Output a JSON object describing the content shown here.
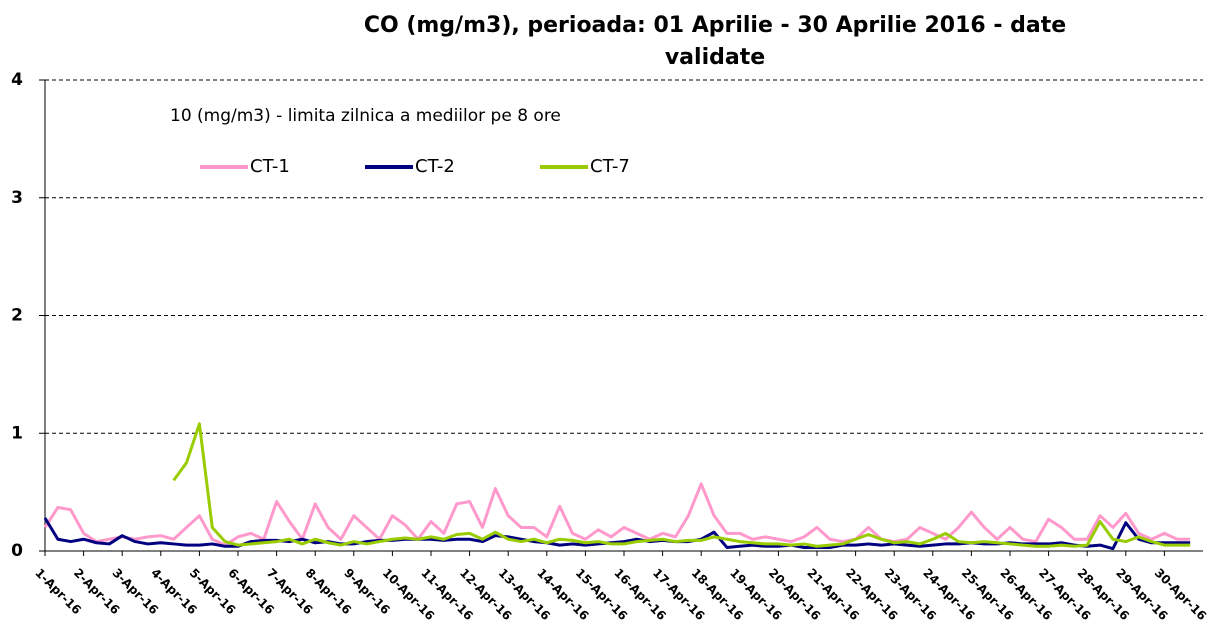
{
  "chart_data": {
    "type": "line",
    "title": [
      "CO (mg/m3), perioada:  01 Aprilie  - 30 Aprilie  2016 - date",
      "validate"
    ],
    "annotation": "10 (mg/m3) - limita zilnica a mediilor pe 8 ore",
    "categories": [
      "1-Apr-16",
      null,
      null,
      "2-Apr-16",
      null,
      null,
      "3-Apr-16",
      null,
      null,
      "4-Apr-16",
      null,
      null,
      "5-Apr-16",
      null,
      null,
      "6-Apr-16",
      null,
      null,
      "7-Apr-16",
      null,
      null,
      "8-Apr-16",
      null,
      null,
      "9-Apr-16",
      null,
      null,
      "10-Apr-16",
      null,
      null,
      "11-Apr-16",
      null,
      null,
      "12-Apr-16",
      null,
      null,
      "13-Apr-16",
      null,
      null,
      "14-Apr-16",
      null,
      null,
      "15-Apr-16",
      null,
      null,
      "16-Apr-16",
      null,
      null,
      "17-Apr-16",
      null,
      null,
      "18-Apr-16",
      null,
      null,
      "19-Apr-16",
      null,
      null,
      "20-Apr-16",
      null,
      null,
      "21-Apr-16",
      null,
      null,
      "22-Apr-16",
      null,
      null,
      "23-Apr-16",
      null,
      null,
      "24-Apr-16",
      null,
      null,
      "25-Apr-16",
      null,
      null,
      "26-Apr-16",
      null,
      null,
      "27-Apr-16",
      null,
      null,
      "28-Apr-16",
      null,
      null,
      "29-Apr-16",
      null,
      null,
      "30-Apr-16",
      null,
      null
    ],
    "series": [
      {
        "name": "CT-1",
        "color": "#ff99cc",
        "values": [
          0.2,
          0.37,
          0.35,
          0.15,
          0.08,
          0.1,
          0.12,
          0.1,
          0.12,
          0.13,
          0.1,
          0.2,
          0.3,
          0.1,
          0.05,
          0.12,
          0.15,
          0.1,
          0.42,
          0.25,
          0.1,
          0.4,
          0.2,
          0.1,
          0.3,
          0.2,
          0.1,
          0.3,
          0.22,
          0.1,
          0.25,
          0.15,
          0.4,
          0.42,
          0.2,
          0.53,
          0.3,
          0.2,
          0.2,
          0.12,
          0.38,
          0.15,
          0.1,
          0.18,
          0.12,
          0.2,
          0.15,
          0.1,
          0.15,
          0.12,
          0.3,
          0.57,
          0.3,
          0.15,
          0.15,
          0.1,
          0.12,
          0.1,
          0.08,
          0.12,
          0.2,
          0.1,
          0.08,
          0.1,
          0.2,
          0.1,
          0.08,
          0.1,
          0.2,
          0.15,
          0.1,
          0.2,
          0.33,
          0.2,
          0.1,
          0.2,
          0.1,
          0.08,
          0.27,
          0.2,
          0.1,
          0.1,
          0.3,
          0.2,
          0.32,
          0.15,
          0.1,
          0.15,
          0.1,
          0.1
        ]
      },
      {
        "name": "CT-2",
        "color": "#000080",
        "values": [
          0.28,
          0.1,
          0.08,
          0.1,
          0.07,
          0.06,
          0.13,
          0.08,
          0.06,
          0.07,
          0.06,
          0.05,
          0.05,
          0.06,
          0.04,
          0.04,
          0.08,
          0.09,
          0.09,
          0.08,
          0.1,
          0.07,
          0.08,
          0.06,
          0.06,
          0.08,
          0.09,
          0.09,
          0.1,
          0.1,
          0.1,
          0.09,
          0.1,
          0.1,
          0.08,
          0.13,
          0.12,
          0.1,
          0.08,
          0.07,
          0.05,
          0.06,
          0.05,
          0.06,
          0.07,
          0.08,
          0.1,
          0.08,
          0.09,
          0.08,
          0.08,
          0.1,
          0.16,
          0.03,
          0.04,
          0.05,
          0.04,
          0.04,
          0.05,
          0.03,
          0.03,
          0.03,
          0.05,
          0.05,
          0.06,
          0.05,
          0.06,
          0.05,
          0.04,
          0.05,
          0.06,
          0.06,
          0.07,
          0.06,
          0.06,
          0.07,
          0.06,
          0.06,
          0.06,
          0.07,
          0.05,
          0.04,
          0.05,
          0.02,
          0.24,
          0.1,
          0.07,
          0.07,
          0.07,
          0.07
        ]
      },
      {
        "name": "CT-7",
        "color": "#99cc00",
        "values": [
          null,
          null,
          null,
          null,
          null,
          null,
          null,
          null,
          null,
          null,
          0.6,
          0.75,
          1.08,
          0.2,
          0.08,
          0.05,
          0.06,
          0.07,
          0.08,
          0.1,
          0.06,
          0.1,
          0.07,
          0.05,
          0.08,
          0.06,
          0.08,
          0.1,
          0.11,
          0.1,
          0.12,
          0.1,
          0.14,
          0.15,
          0.1,
          0.16,
          0.1,
          0.08,
          0.1,
          0.07,
          0.1,
          0.09,
          0.07,
          0.08,
          0.06,
          0.06,
          0.08,
          0.09,
          0.1,
          0.08,
          0.09,
          0.09,
          0.12,
          0.1,
          0.08,
          0.07,
          0.06,
          0.06,
          0.05,
          0.06,
          0.04,
          0.05,
          0.06,
          0.1,
          0.14,
          0.1,
          0.07,
          0.08,
          0.06,
          0.1,
          0.15,
          0.08,
          0.07,
          0.08,
          0.07,
          0.06,
          0.05,
          0.04,
          0.04,
          0.05,
          0.04,
          0.05,
          0.25,
          0.1,
          0.08,
          0.12,
          0.08,
          0.05,
          0.05,
          0.05
        ]
      }
    ],
    "ylim": [
      0,
      4
    ],
    "yticks": [
      0,
      1,
      2,
      3,
      4
    ],
    "grid": true
  }
}
